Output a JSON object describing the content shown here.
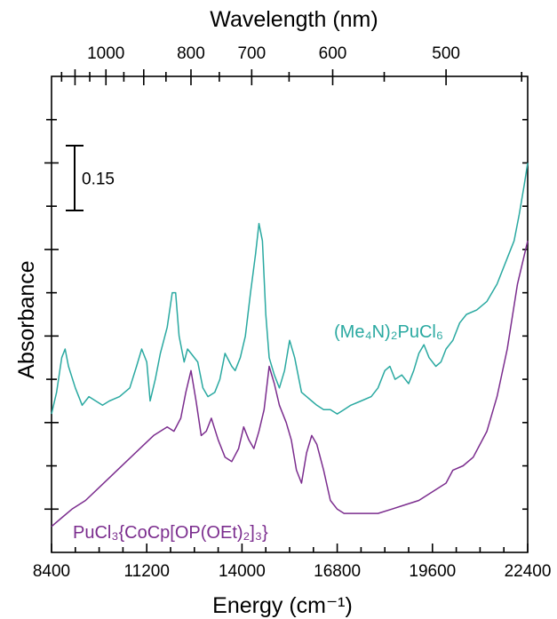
{
  "chart_data": {
    "type": "line",
    "xlabel": "Energy (cm⁻¹)",
    "ylabel": "Absorbance",
    "top_axis_label": "Wavelength (nm)",
    "xlim": [
      8400,
      22400
    ],
    "x_ticks": [
      8400,
      11200,
      14000,
      16800,
      19600,
      22400
    ],
    "x_tick_labels": [
      "8400",
      "11200",
      "14000",
      "16800",
      "19600",
      "22400"
    ],
    "top_ticks_nm": [
      1000,
      800,
      700,
      600,
      500
    ],
    "top_tick_labels": [
      "1000",
      "800",
      "700",
      "600",
      "500"
    ],
    "ylim": [
      0,
      1.1
    ],
    "y_ticks": [
      0.1,
      0.2,
      0.3,
      0.4,
      0.5,
      0.6,
      0.7,
      0.8,
      0.9,
      1.0
    ],
    "scale_bar": {
      "value": 0.15,
      "label": "0.15",
      "bottom": 0.79
    },
    "series": [
      {
        "name": "(Me₄N)₂PuCl₆",
        "color": "#2aa9a1",
        "x": [
          8400,
          8550,
          8700,
          8800,
          8900,
          9100,
          9300,
          9500,
          9700,
          9900,
          10100,
          10400,
          10700,
          10900,
          11050,
          11200,
          11300,
          11450,
          11600,
          11800,
          11950,
          12050,
          12150,
          12300,
          12400,
          12500,
          12700,
          12850,
          13000,
          13200,
          13350,
          13500,
          13700,
          13800,
          13950,
          14100,
          14250,
          14400,
          14500,
          14600,
          14700,
          14800,
          14950,
          15100,
          15250,
          15400,
          15550,
          15750,
          15900,
          16050,
          16200,
          16400,
          16600,
          16800,
          17000,
          17200,
          17500,
          17800,
          18000,
          18200,
          18350,
          18500,
          18700,
          18900,
          19050,
          19200,
          19350,
          19500,
          19700,
          19850,
          20000,
          20200,
          20400,
          20600,
          20900,
          21200,
          21500,
          21800,
          22000,
          22150,
          22300,
          22400
        ],
        "y": [
          0.32,
          0.37,
          0.45,
          0.47,
          0.43,
          0.38,
          0.34,
          0.36,
          0.35,
          0.34,
          0.35,
          0.36,
          0.38,
          0.43,
          0.47,
          0.44,
          0.35,
          0.4,
          0.46,
          0.52,
          0.6,
          0.6,
          0.5,
          0.44,
          0.47,
          0.46,
          0.44,
          0.38,
          0.36,
          0.37,
          0.4,
          0.46,
          0.43,
          0.42,
          0.45,
          0.5,
          0.6,
          0.69,
          0.76,
          0.72,
          0.55,
          0.45,
          0.41,
          0.38,
          0.42,
          0.49,
          0.45,
          0.37,
          0.36,
          0.35,
          0.34,
          0.33,
          0.33,
          0.32,
          0.33,
          0.34,
          0.35,
          0.36,
          0.38,
          0.42,
          0.43,
          0.4,
          0.41,
          0.39,
          0.42,
          0.46,
          0.48,
          0.45,
          0.43,
          0.44,
          0.47,
          0.49,
          0.53,
          0.55,
          0.56,
          0.58,
          0.62,
          0.68,
          0.72,
          0.78,
          0.85,
          0.9
        ]
      },
      {
        "name": "PuCl₃{CoCp[OP(OEt)₂]₃}",
        "color": "#7b2d8e",
        "x": [
          8400,
          8700,
          9000,
          9400,
          9800,
          10200,
          10600,
          11000,
          11400,
          11800,
          12000,
          12200,
          12350,
          12500,
          12650,
          12800,
          12950,
          13100,
          13300,
          13500,
          13700,
          13900,
          14050,
          14200,
          14350,
          14500,
          14650,
          14800,
          14950,
          15100,
          15300,
          15450,
          15600,
          15750,
          15900,
          16050,
          16200,
          16400,
          16600,
          16800,
          17000,
          17300,
          17600,
          18000,
          18400,
          18800,
          19200,
          19600,
          20000,
          20200,
          20500,
          20800,
          21200,
          21500,
          21800,
          22100,
          22400
        ],
        "y": [
          0.06,
          0.08,
          0.1,
          0.12,
          0.15,
          0.18,
          0.21,
          0.24,
          0.27,
          0.29,
          0.28,
          0.31,
          0.37,
          0.42,
          0.35,
          0.27,
          0.28,
          0.31,
          0.26,
          0.22,
          0.21,
          0.24,
          0.29,
          0.26,
          0.24,
          0.28,
          0.33,
          0.43,
          0.39,
          0.34,
          0.3,
          0.26,
          0.19,
          0.16,
          0.23,
          0.27,
          0.25,
          0.19,
          0.12,
          0.1,
          0.09,
          0.09,
          0.09,
          0.09,
          0.1,
          0.11,
          0.12,
          0.14,
          0.16,
          0.19,
          0.2,
          0.22,
          0.28,
          0.36,
          0.47,
          0.62,
          0.72
        ]
      }
    ],
    "grid": false,
    "legend": "inline labels"
  }
}
